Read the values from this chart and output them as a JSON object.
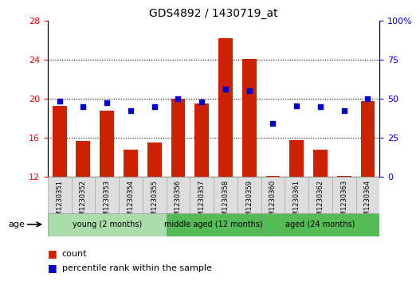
{
  "title": "GDS4892 / 1430719_at",
  "samples": [
    "GSM1230351",
    "GSM1230352",
    "GSM1230353",
    "GSM1230354",
    "GSM1230355",
    "GSM1230356",
    "GSM1230357",
    "GSM1230358",
    "GSM1230359",
    "GSM1230360",
    "GSM1230361",
    "GSM1230362",
    "GSM1230363",
    "GSM1230364"
  ],
  "bar_values": [
    19.3,
    15.7,
    18.8,
    14.8,
    15.5,
    20.0,
    19.5,
    26.2,
    24.1,
    12.1,
    15.8,
    14.8,
    12.1,
    19.8
  ],
  "percentile_values": [
    19.8,
    19.2,
    19.6,
    18.8,
    19.2,
    20.0,
    19.7,
    21.0,
    20.8,
    17.5,
    19.3,
    19.2,
    18.8,
    20.0
  ],
  "bar_bottom": 12,
  "ylim_left": [
    12,
    28
  ],
  "ylim_right": [
    0,
    100
  ],
  "yticks_left": [
    12,
    16,
    20,
    24,
    28
  ],
  "yticks_right": [
    0,
    25,
    50,
    75,
    100
  ],
  "ytick_right_labels": [
    "0",
    "25",
    "50",
    "75",
    "100%"
  ],
  "bar_color": "#cc2200",
  "dot_color": "#0000cc",
  "group_data": [
    {
      "label": "young (2 months)",
      "start": 0,
      "end": 5,
      "color": "#aaddaa"
    },
    {
      "label": "middle aged (12 months)",
      "start": 5,
      "end": 9,
      "color": "#55bb55"
    },
    {
      "label": "aged (24 months)",
      "start": 9,
      "end": 14,
      "color": "#55bb55"
    }
  ],
  "age_label": "age",
  "legend_count_label": "count",
  "legend_percentile_label": "percentile rank within the sample",
  "bar_width": 0.6,
  "gridline_yticks": [
    16,
    20,
    24
  ]
}
